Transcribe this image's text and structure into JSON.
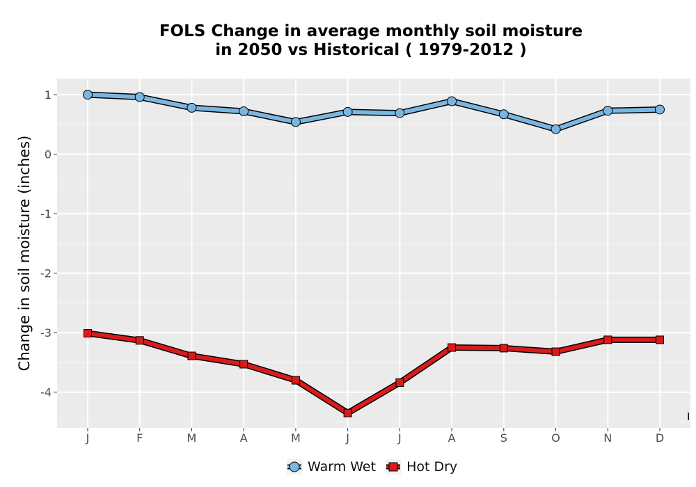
{
  "chart_data": {
    "type": "line",
    "title_line1": "FOLS  Change in average monthly soil moisture",
    "title_line2": "in 2050 vs Historical ( 1979-2012 )",
    "xlabel": "",
    "ylabel": "Change in soil moisture (inches)",
    "categories": [
      "J",
      "F",
      "M",
      "A",
      "M",
      "J",
      "J",
      "A",
      "S",
      "O",
      "N",
      "D"
    ],
    "ylim": [
      -4.6,
      1.27
    ],
    "yticks": [
      1,
      0,
      -1,
      -2,
      -3,
      -4
    ],
    "ytick_labels": [
      "1",
      "0",
      "-1",
      "-2",
      "-3",
      "-4"
    ],
    "grid": true,
    "legend_position": "bottom",
    "corner_mark": "I",
    "series": [
      {
        "name": "Warm Wet",
        "color": "#7ab6e0",
        "marker": "circle",
        "values": [
          1.0,
          0.96,
          0.78,
          0.72,
          0.54,
          0.71,
          0.69,
          0.89,
          0.67,
          0.42,
          0.73,
          0.75
        ]
      },
      {
        "name": "Hot Dry",
        "color": "#d81b1b",
        "marker": "square",
        "values": [
          -3.01,
          -3.13,
          -3.39,
          -3.53,
          -3.8,
          -4.35,
          -3.84,
          -3.25,
          -3.26,
          -3.32,
          -3.12,
          -3.12
        ]
      }
    ]
  }
}
